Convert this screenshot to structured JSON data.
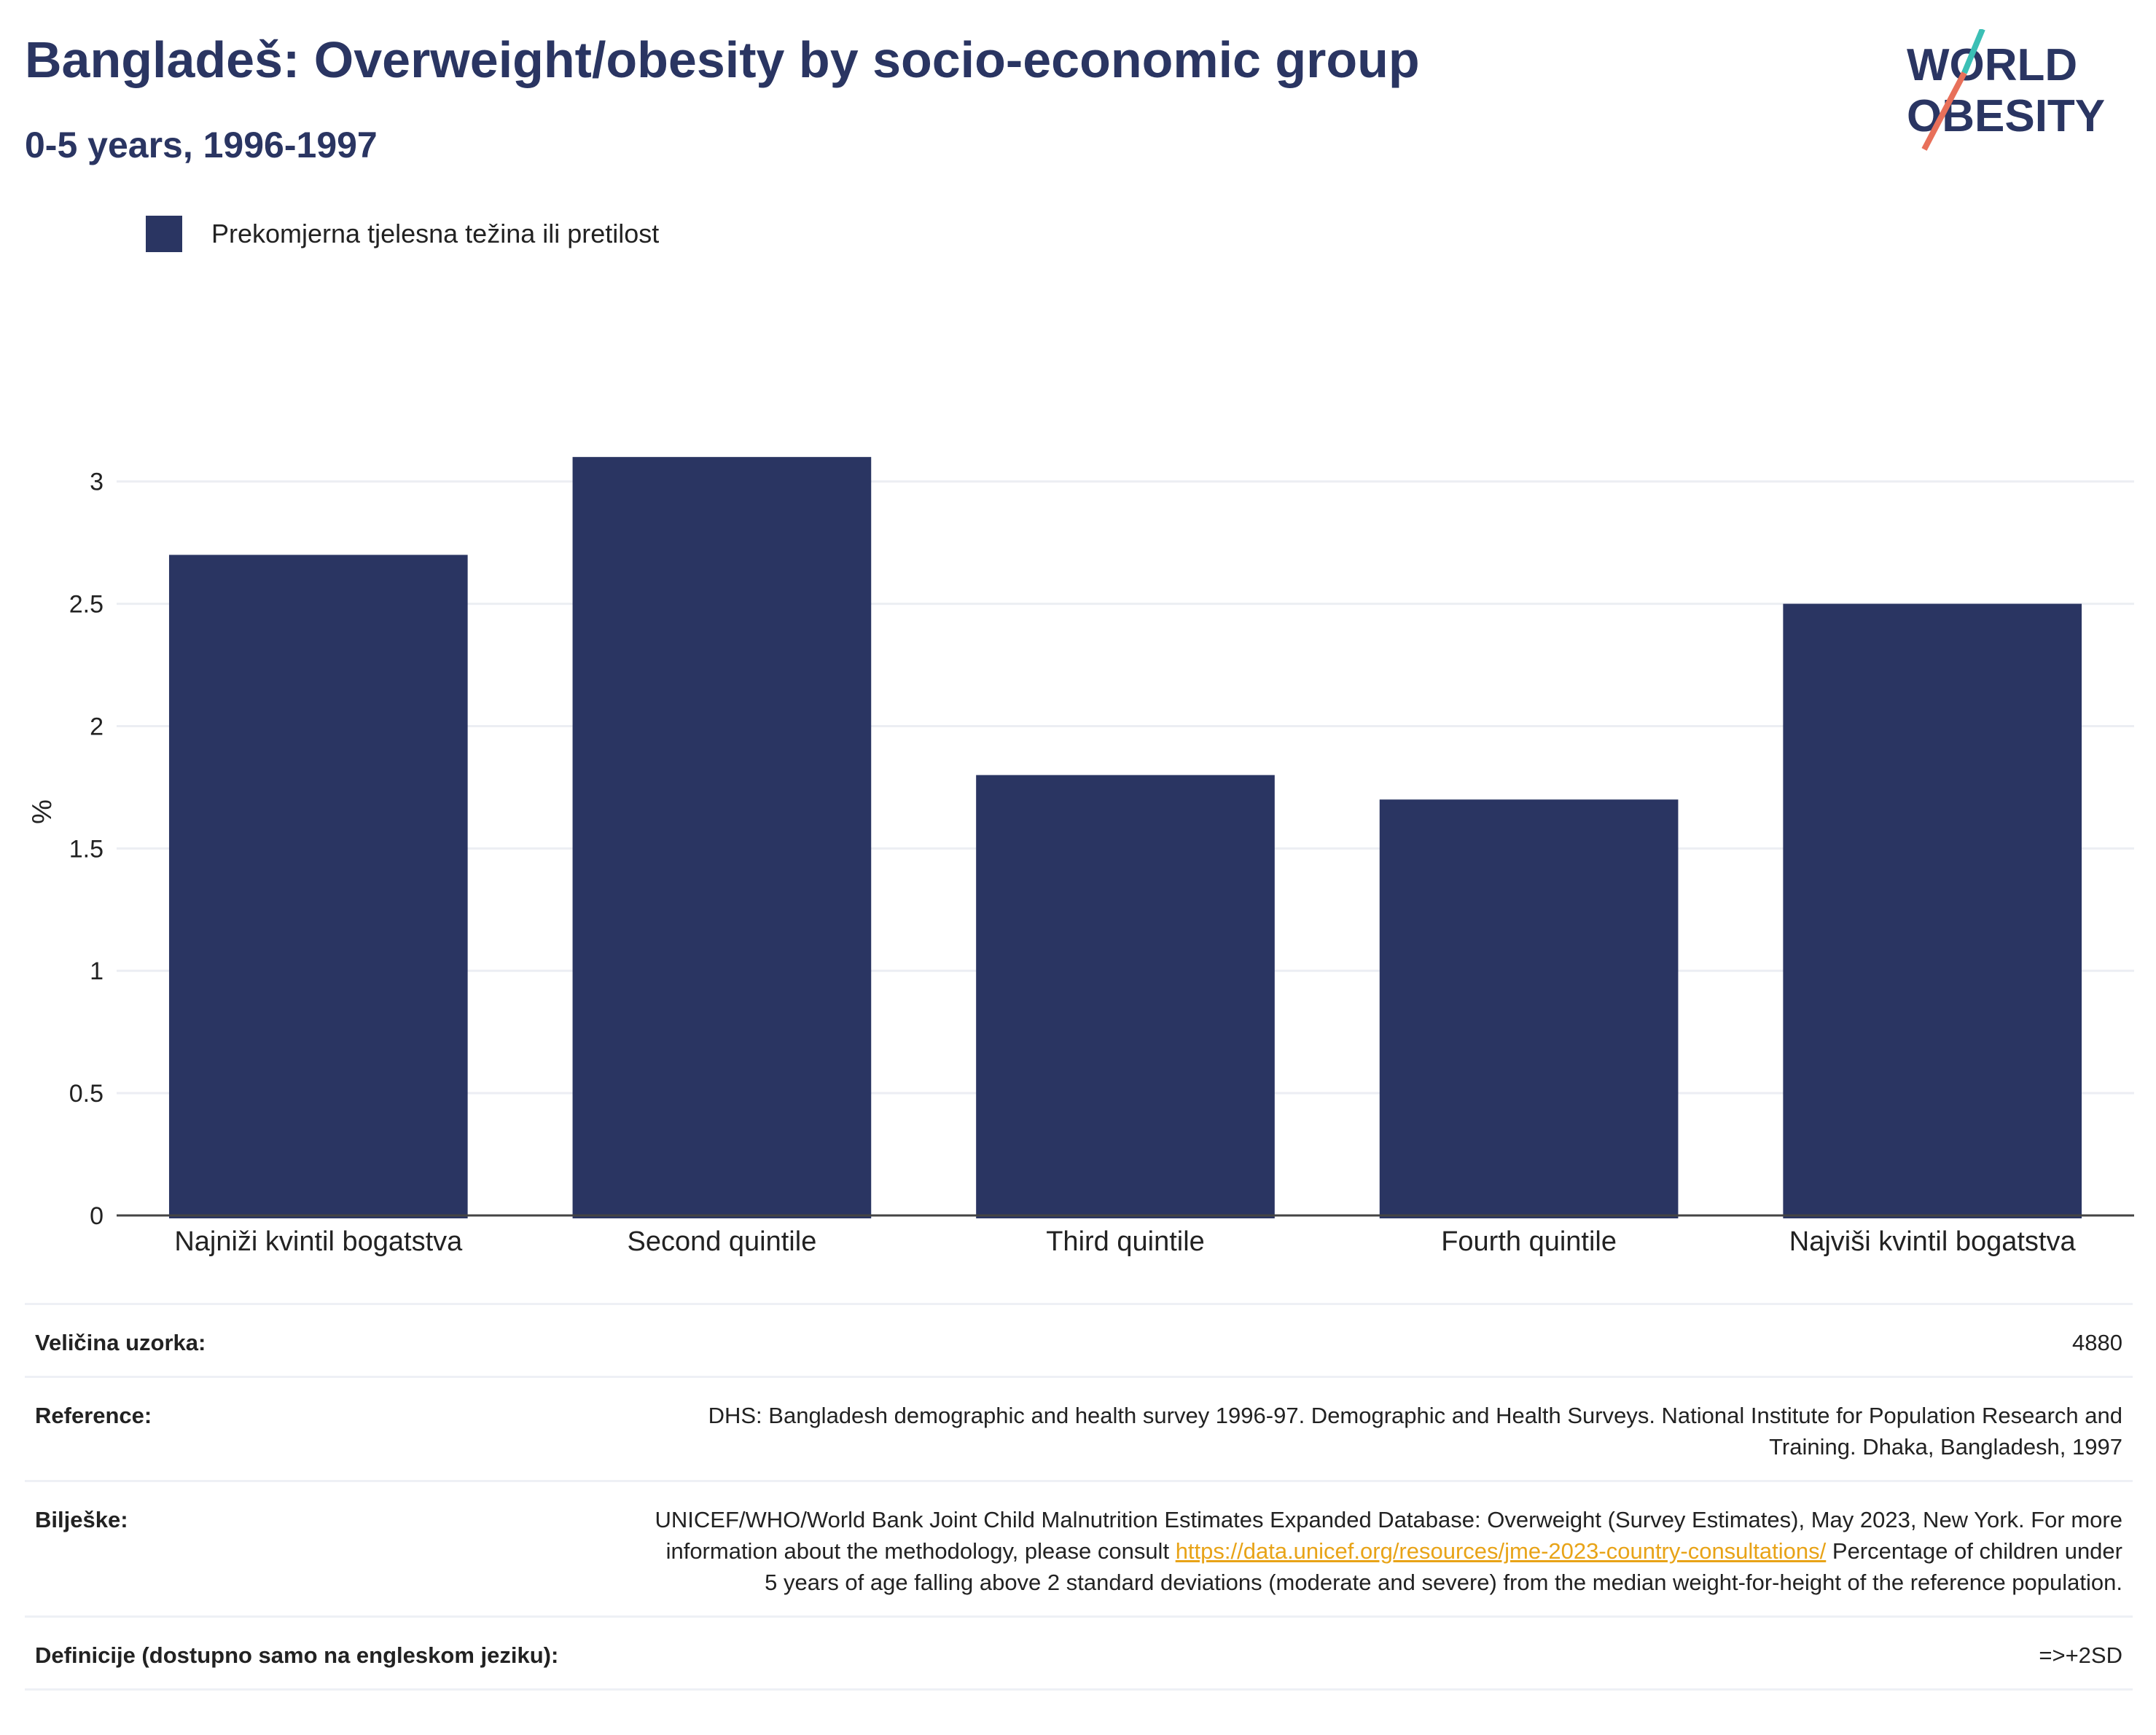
{
  "header": {
    "title": "Bangladeš: Overweight/obesity by socio-economic group",
    "subtitle": "0-5 years, 1996-1997"
  },
  "logo": {
    "line1": "WORLD",
    "line2": "OBESITY",
    "colors": {
      "text": "#2a3562",
      "slash_top": "#3bbfb5",
      "slash_bottom": "#e8705a"
    }
  },
  "legend": {
    "label": "Prekomjerna tjelesna težina ili pretilost",
    "color": "#2a3562"
  },
  "chart_data": {
    "type": "bar",
    "categories": [
      "Najniži kvintil bogatstva",
      "Second quintile",
      "Third quintile",
      "Fourth quintile",
      "Najviši kvintil bogatstva"
    ],
    "series": [
      {
        "name": "Prekomjerna tjelesna težina ili pretilost",
        "values": [
          2.7,
          3.1,
          1.8,
          1.7,
          2.5
        ],
        "color": "#2a3562"
      }
    ],
    "ylabel": "%",
    "ylim": [
      0,
      3.3
    ],
    "yticks": [
      0,
      0.5,
      1,
      1.5,
      2,
      2.5,
      3
    ],
    "ytick_labels": [
      "0",
      "0.5",
      "1",
      "1.5",
      "2",
      "2.5",
      "3"
    ],
    "grid": true
  },
  "info": {
    "sample_label": "Veličina uzorka:",
    "sample_value": "4880",
    "reference_label": "Reference:",
    "reference_value": "DHS: Bangladesh demographic and health survey 1996-97. Demographic and Health Surveys. National Institute for Population Research and Training. Dhaka, Bangladesh, 1997",
    "notes_label": "Bilješke:",
    "notes_text_1": "UNICEF/WHO/World Bank Joint Child Malnutrition Estimates Expanded Database: Overweight (Survey Estimates), May 2023, New York. For more information about the methodology, please consult",
    "notes_link": "https://data.unicef.org/resources/jme-2023-country-consultations/",
    "notes_text_2": "Percentage of children under 5 years of age falling above 2 standard deviations (moderate and severe) from the median weight-for-height of the reference population.",
    "definitions_label": "Definicije (dostupno samo na engleskom jeziku):",
    "definitions_value": "=>+2SD"
  }
}
